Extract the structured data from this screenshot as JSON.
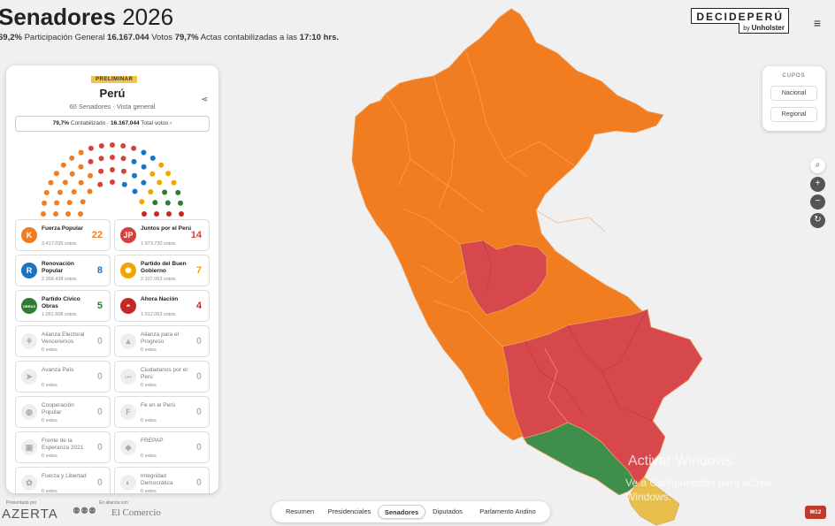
{
  "header": {
    "title_bold": "Senadores",
    "title_year": "2026",
    "participation_pct": "69,2%",
    "participation_label": "Participación General",
    "votes": "16.167.044",
    "votes_label": "Votos",
    "actas_pct": "79,7%",
    "actas_label": "Actas contabilizadas a las",
    "time": "17:10 hrs."
  },
  "brand": {
    "name": "DECIDEPERÚ",
    "by": "by",
    "by_name": "Unholster"
  },
  "panel": {
    "badge": "PRELIMINAR",
    "title": "Perú",
    "subtitle": "60 Senadores · Vista general",
    "counted_pct": "79,7%",
    "counted_label": "Contabilizado",
    "total_votes": "16.167.044",
    "total_label": "Total votos",
    "parties": [
      {
        "name": "Fuerza Popular",
        "votes": "3.417.035 votos",
        "seats": "22",
        "color": "#f27d21",
        "glyph": "K"
      },
      {
        "name": "Juntos por el Perú",
        "votes": "1.973.720 votos",
        "seats": "14",
        "color": "#d6413b",
        "glyph": "JP"
      },
      {
        "name": "Renovación Popular",
        "votes": "2.268.438 votos",
        "seats": "8",
        "color": "#1e73be",
        "glyph": "R"
      },
      {
        "name": "Partido del Buen Gobierno",
        "votes": "2.107.063 votos",
        "seats": "7",
        "color": "#f0a500",
        "glyph": "✺"
      },
      {
        "name": "Partido Cívico Obras",
        "votes": "1.091.608 votos",
        "seats": "5",
        "color": "#2e7d32",
        "glyph": "OBRAS"
      },
      {
        "name": "Ahora Nación",
        "votes": "1.012.063 votos",
        "seats": "4",
        "color": "#c62828",
        "glyph": "◓"
      },
      {
        "name": "Alianza Electoral Venceremos",
        "votes": "0 votos",
        "seats": "0",
        "color": "#b39ddb",
        "glyph": "⚘"
      },
      {
        "name": "Alianza para el Progreso",
        "votes": "0 votos",
        "seats": "0",
        "color": "#64b5f6",
        "glyph": "▲"
      },
      {
        "name": "Avanza País",
        "votes": "0 votos",
        "seats": "0",
        "color": "#90a4ae",
        "glyph": "➤"
      },
      {
        "name": "Ciudadanos por el Perú",
        "votes": "0 votos",
        "seats": "0",
        "color": "#ef9a9a",
        "glyph": "CPP"
      },
      {
        "name": "Cooperación Popular",
        "votes": "0 votos",
        "seats": "0",
        "color": "#81c784",
        "glyph": "◍"
      },
      {
        "name": "Fe en el Perú",
        "votes": "0 votos",
        "seats": "0",
        "color": "#a5d6a7",
        "glyph": "F"
      },
      {
        "name": "Frente de la Esperanza 2021",
        "votes": "0 votos",
        "seats": "0",
        "color": "#8d6e63",
        "glyph": "▣"
      },
      {
        "name": "FREPAP",
        "votes": "0 votos",
        "seats": "0",
        "color": "#4fc3f7",
        "glyph": "◆"
      },
      {
        "name": "Fuerza y Libertad",
        "votes": "0 votos",
        "seats": "0",
        "color": "#9575cd",
        "glyph": "✿"
      },
      {
        "name": "Integridad Democrática",
        "votes": "0 votos",
        "seats": "0",
        "color": "#4db6ac",
        "glyph": "◐"
      }
    ]
  },
  "footer_credits": {
    "presented_by": "Presentado por",
    "presented_logo": "AZERTA",
    "alliance": "En alianza con",
    "alliance_logo": "El Comercio"
  },
  "cupos": {
    "title": "CUPOS",
    "national": "Nacional",
    "regional": "Regional"
  },
  "map_controls": {
    "search_icon": "search-icon",
    "zoom_in": "+",
    "zoom_out": "−",
    "reset": "↻"
  },
  "tabs": [
    {
      "label": "Resumen"
    },
    {
      "label": "Presidenciales"
    },
    {
      "label": "Senadores"
    },
    {
      "label": "Diputados"
    },
    {
      "label": "Parlamento Andino"
    }
  ],
  "watermark": {
    "line1": "Activar Windows",
    "line2": "Ve a Configuración para activar Windows."
  },
  "notification": {
    "label": "12"
  },
  "colors": {
    "orange": "#f27d21",
    "red": "#d6484b",
    "green": "#3f8f4c",
    "yellow": "#e8be4c"
  }
}
